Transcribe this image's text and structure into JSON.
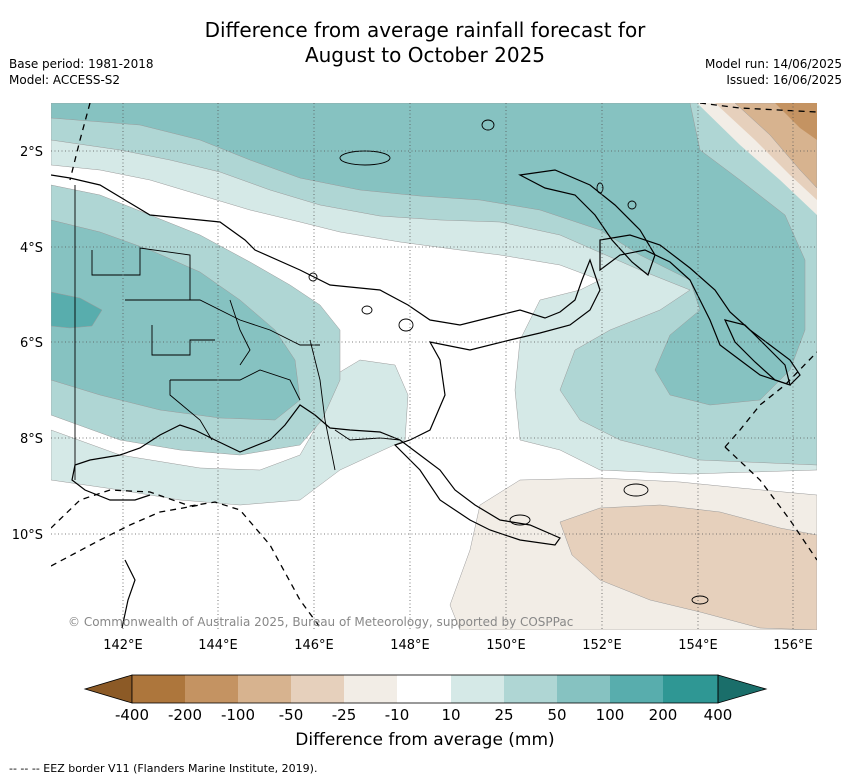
{
  "title_line1": "Difference from average rainfall forecast for",
  "title_line2": "August to October 2025",
  "base_period": "Base period: 1981-2018",
  "model": "Model: ACCESS-S2",
  "model_run": "Model run: 14/06/2025",
  "issued": "Issued: 16/06/2025",
  "copyright": "© Commonwealth of Australia 2025, Bureau of Meteorology, supported by COSPPac",
  "lat_labels": [
    "2°S",
    "4°S",
    "6°S",
    "8°S",
    "10°S"
  ],
  "lon_labels": [
    "142°E",
    "144°E",
    "146°E",
    "148°E",
    "150°E",
    "152°E",
    "154°E",
    "156°E"
  ],
  "colorbar": {
    "title": "Difference from average (mm)",
    "ticks": [
      "-400",
      "-200",
      "-100",
      "-50",
      "-25",
      "-10",
      "10",
      "25",
      "50",
      "100",
      "200",
      "400"
    ],
    "colors": {
      "below_-400": "#8c5a26",
      "-400_-200": "#ad763c",
      "-200_-100": "#c49362",
      "-100_-50": "#d7b38f",
      "-50_-25": "#e6d0bc",
      "-25_-10": "#f2ede6",
      "-10_10": "#ffffff",
      "10_25": "#d5e9e7",
      "25_50": "#afd6d4",
      "50_100": "#86c2c1",
      "100_200": "#58adad",
      "200_400": "#2f9794",
      "above_400": "#1a6e6a"
    }
  },
  "legend_footer": "--  --  -- EEZ border V11 (Flanders Marine Institute, 2019)."
}
